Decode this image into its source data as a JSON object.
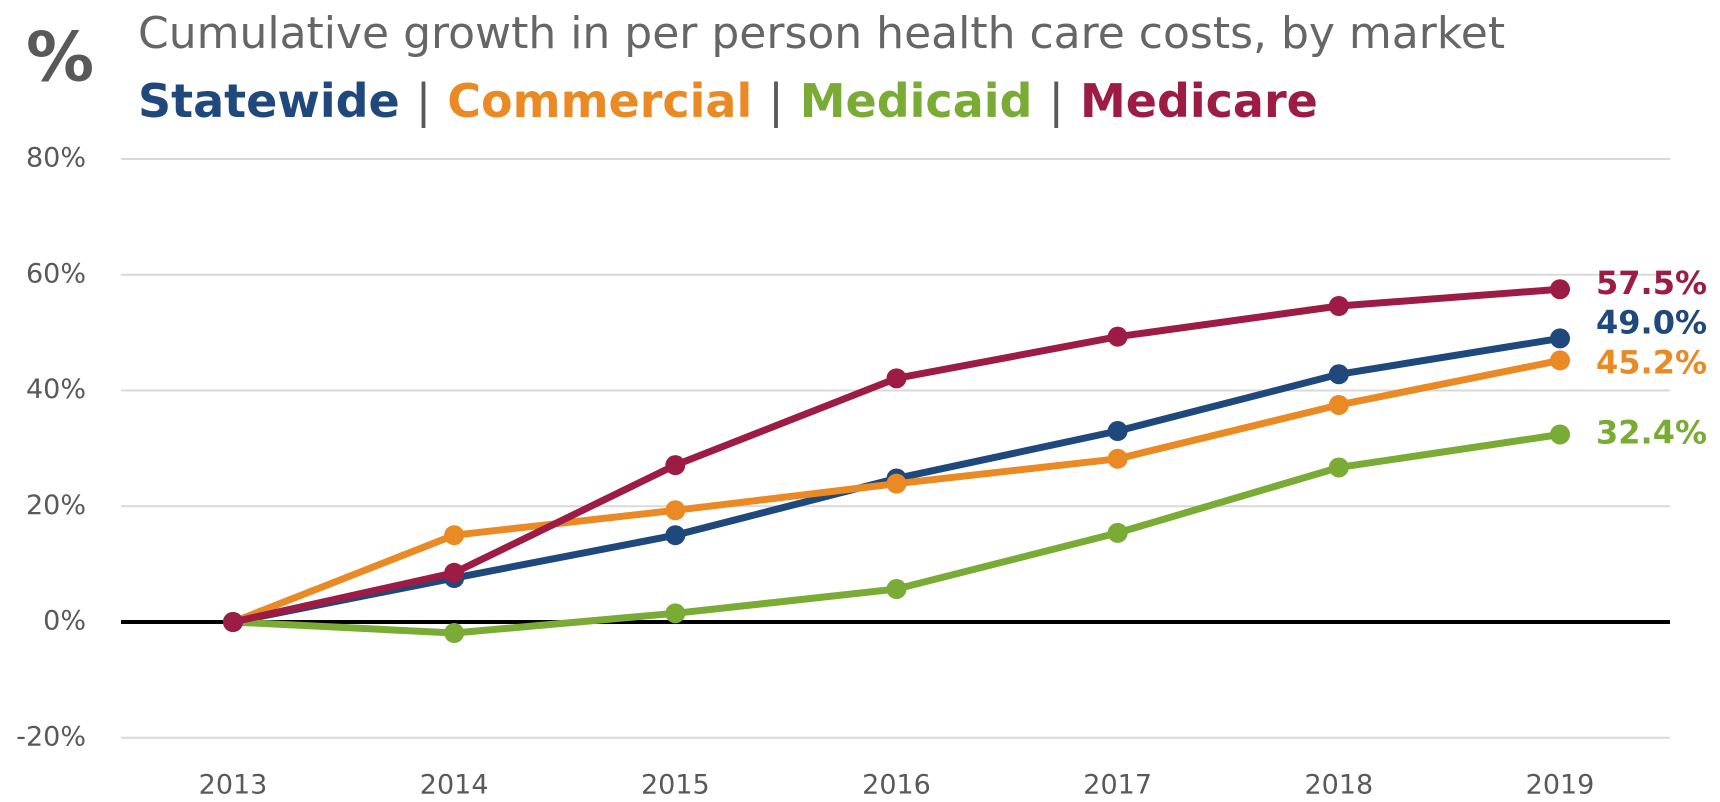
{
  "chart_data": {
    "type": "line",
    "units_label": "%",
    "title": "Cumulative growth in per person health care costs, by market",
    "legend_separator": "|",
    "x": [
      2013,
      2014,
      2015,
      2016,
      2017,
      2018,
      2019
    ],
    "xlim": [
      2013,
      2019
    ],
    "xticks": [
      2013,
      2014,
      2015,
      2016,
      2017,
      2018,
      2019
    ],
    "ylim": [
      -20,
      80
    ],
    "yticks": [
      {
        "value": -20,
        "label": "-20%"
      },
      {
        "value": 0,
        "label": "0%"
      },
      {
        "value": 20,
        "label": "20%"
      },
      {
        "value": 40,
        "label": "40%"
      },
      {
        "value": 60,
        "label": "60%"
      },
      {
        "value": 80,
        "label": "80%"
      }
    ],
    "grid": true,
    "zero_line": true,
    "series": [
      {
        "name": "Statewide",
        "color": "#1f497d",
        "values": [
          0,
          7.6,
          15.0,
          24.8,
          33.0,
          42.8,
          49.0
        ],
        "value_labels": [
          null,
          null,
          null,
          null,
          null,
          null,
          "49.0%"
        ]
      },
      {
        "name": "Commercial",
        "color": "#ea8a25",
        "values": [
          0,
          15.0,
          19.3,
          23.9,
          28.2,
          37.5,
          45.2
        ],
        "value_labels": [
          null,
          null,
          null,
          null,
          null,
          null,
          "45.2%"
        ]
      },
      {
        "name": "Medicaid",
        "color": "#7aab35",
        "values": [
          0,
          -1.9,
          1.5,
          5.7,
          15.4,
          26.7,
          32.4
        ],
        "value_labels": [
          null,
          null,
          null,
          null,
          null,
          null,
          "32.4%"
        ]
      },
      {
        "name": "Medicare",
        "color": "#9c1c45",
        "values": [
          0,
          8.5,
          27.1,
          42.1,
          49.3,
          54.6,
          57.5
        ],
        "value_labels": [
          null,
          null,
          null,
          null,
          null,
          null,
          "57.5%"
        ]
      }
    ]
  }
}
